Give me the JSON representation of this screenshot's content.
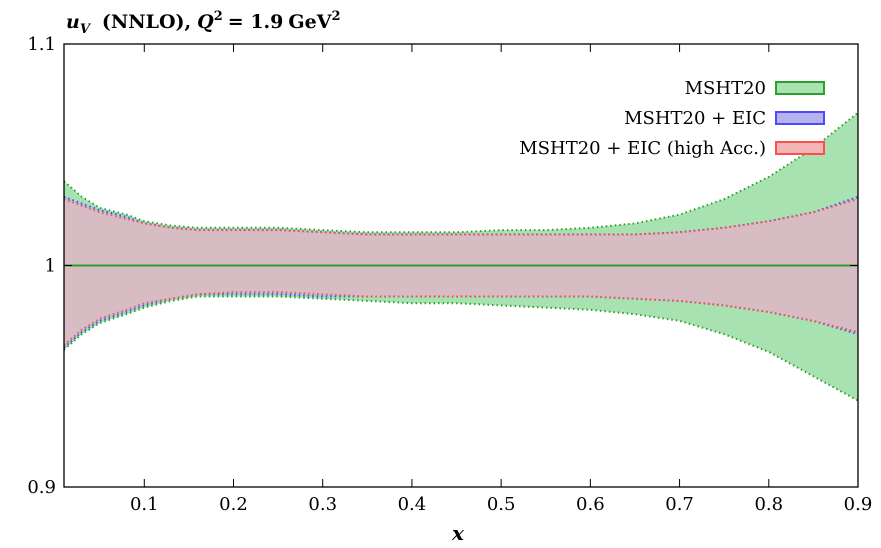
{
  "chart_data": {
    "type": "area",
    "title": "u_V (NNLO), Q² = 1.9 GeV²",
    "title_parts": {
      "symbol": "u",
      "subscript": "V",
      "order": "(NNLO),",
      "q": "Q",
      "q_sup": "2",
      "value": "= 1.9",
      "unit": "GeV",
      "unit_sup": "2"
    },
    "xlabel": "x",
    "ylabel": "",
    "xlim": [
      0.01,
      0.9
    ],
    "ylim": [
      0.9,
      1.1
    ],
    "x_ticks": [
      0.1,
      0.2,
      0.3,
      0.4,
      0.5,
      0.6,
      0.7,
      0.8,
      0.9
    ],
    "x_tick_labels": [
      "0.1",
      "0.2",
      "0.3",
      "0.4",
      "0.5",
      "0.6",
      "0.7",
      "0.8",
      "0.9"
    ],
    "y_ticks": [
      0.9,
      1.0,
      1.1
    ],
    "y_tick_labels": [
      "0.9",
      "1",
      "1.1"
    ],
    "central_line": 1.0,
    "legend_position": "top-right",
    "x": [
      0.01,
      0.03,
      0.05,
      0.08,
      0.1,
      0.13,
      0.16,
      0.2,
      0.25,
      0.3,
      0.35,
      0.4,
      0.45,
      0.5,
      0.55,
      0.6,
      0.65,
      0.7,
      0.75,
      0.8,
      0.85,
      0.9
    ],
    "series": [
      {
        "name": "MSHT20",
        "color": "#2ca02c",
        "fill": "#a8e2b0",
        "upper": [
          1.038,
          1.031,
          1.026,
          1.023,
          1.02,
          1.018,
          1.017,
          1.017,
          1.017,
          1.016,
          1.015,
          1.015,
          1.015,
          1.016,
          1.016,
          1.017,
          1.019,
          1.023,
          1.03,
          1.04,
          1.053,
          1.069
        ],
        "lower": [
          0.962,
          0.969,
          0.974,
          0.978,
          0.981,
          0.984,
          0.986,
          0.986,
          0.986,
          0.985,
          0.984,
          0.983,
          0.983,
          0.982,
          0.981,
          0.98,
          0.978,
          0.975,
          0.969,
          0.961,
          0.95,
          0.939
        ]
      },
      {
        "name": "MSHT20 + EIC",
        "color": "#4a4aff",
        "fill": "#b3b3f0",
        "upper": [
          1.031,
          1.028,
          1.025,
          1.022,
          1.019,
          1.017,
          1.016,
          1.016,
          1.016,
          1.015,
          1.014,
          1.014,
          1.014,
          1.014,
          1.014,
          1.014,
          1.014,
          1.015,
          1.017,
          1.02,
          1.024,
          1.031
        ],
        "lower": [
          0.963,
          0.97,
          0.975,
          0.979,
          0.982,
          0.985,
          0.987,
          0.987,
          0.987,
          0.986,
          0.986,
          0.986,
          0.986,
          0.986,
          0.986,
          0.986,
          0.985,
          0.984,
          0.982,
          0.979,
          0.975,
          0.969
        ]
      },
      {
        "name": "MSHT20 + EIC (high Acc.)",
        "color": "#ff4d4d",
        "fill": "#f2b6b6",
        "upper": [
          1.03,
          1.027,
          1.024,
          1.021,
          1.019,
          1.017,
          1.016,
          1.016,
          1.016,
          1.015,
          1.014,
          1.014,
          1.014,
          1.014,
          1.014,
          1.014,
          1.014,
          1.015,
          1.017,
          1.02,
          1.024,
          1.03
        ],
        "lower": [
          0.964,
          0.971,
          0.976,
          0.98,
          0.983,
          0.985,
          0.987,
          0.988,
          0.988,
          0.987,
          0.986,
          0.986,
          0.986,
          0.986,
          0.986,
          0.986,
          0.985,
          0.984,
          0.982,
          0.979,
          0.975,
          0.97
        ]
      }
    ]
  }
}
